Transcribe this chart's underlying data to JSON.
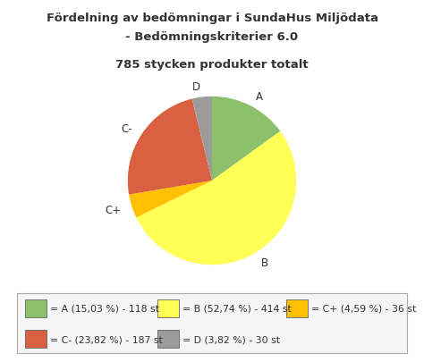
{
  "title_line1": "Fördelning av bedömningar i SundaHus Miljödata",
  "title_line2": "- Bedömningskriterier 6.0",
  "subtitle": "785 stycken produkter totalt",
  "slices": [
    {
      "label": "A",
      "value": 118,
      "color": "#8dc06b"
    },
    {
      "label": "B",
      "value": 414,
      "color": "#ffff55"
    },
    {
      "label": "C+",
      "value": 36,
      "color": "#ffc000"
    },
    {
      "label": "C-",
      "value": 187,
      "color": "#d96040"
    },
    {
      "label": "D",
      "value": 30,
      "color": "#9b9b9b"
    }
  ],
  "legend_items": [
    {
      "label": "= A (15,03 %) - 118 st",
      "color": "#8dc06b"
    },
    {
      "label": "= B (52,74 %) - 414 st",
      "color": "#ffff55"
    },
    {
      "label": "= C+ (4,59 %) - 36 st",
      "color": "#ffc000"
    },
    {
      "label": "= C- (23,82 %) - 187 st",
      "color": "#d96040"
    },
    {
      "label": "= D (3,82 %) - 30 st",
      "color": "#9b9b9b"
    }
  ],
  "background_color": "#ffffff",
  "text_color": "#333333",
  "title_fontsize": 9.5,
  "subtitle_fontsize": 9.5,
  "label_fontsize": 8.5,
  "legend_fontsize": 7.8
}
